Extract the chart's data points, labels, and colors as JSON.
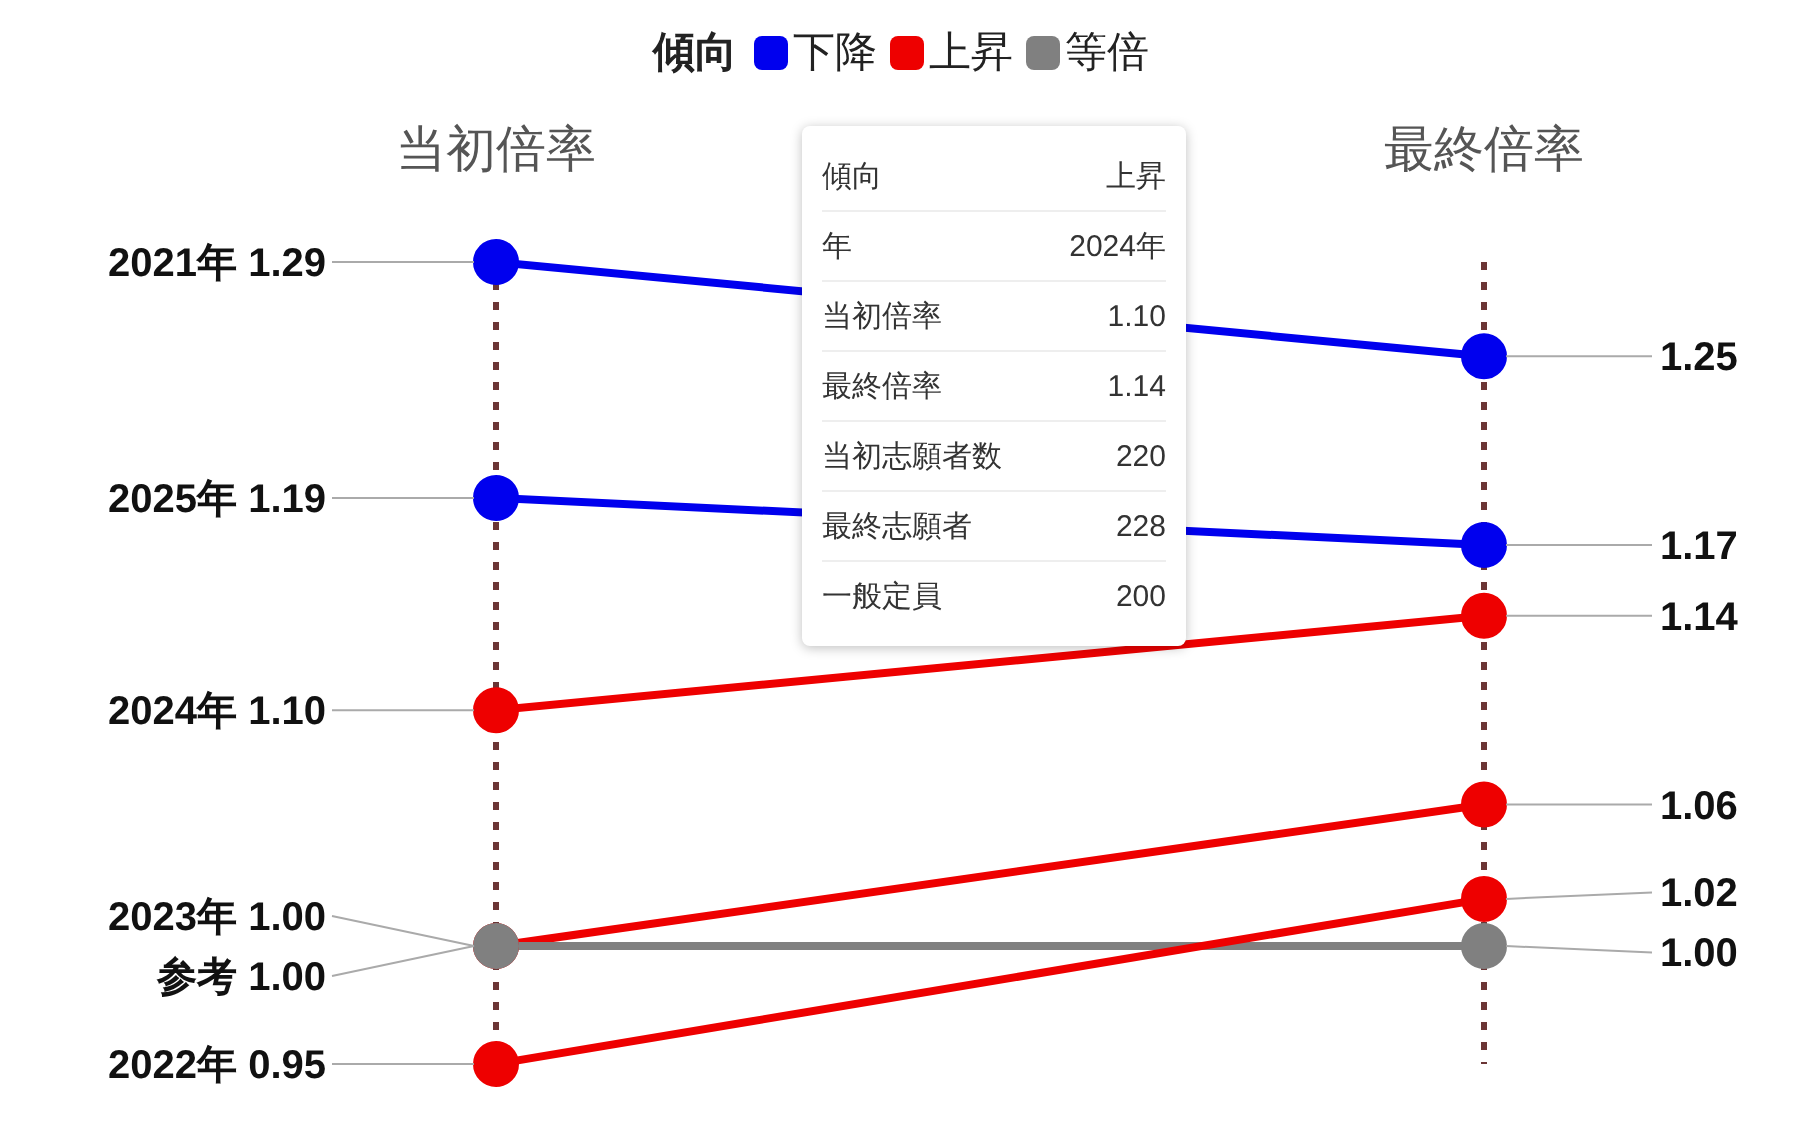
{
  "chart_data": {
    "type": "line",
    "categories": [
      "当初倍率",
      "最終倍率"
    ],
    "ylim": [
      0.95,
      1.29
    ],
    "tick_labels": "x",
    "grid": "x",
    "marker": "circle",
    "line_style": "solid",
    "legend": "top",
    "legend_title": "傾向",
    "series": [
      {
        "color": "#0000ee",
        "values": [
          1.29,
          1.25
        ],
        "value_labels": [
          "2021年 1.29",
          "1.25"
        ]
      },
      {
        "color": "#0000ee",
        "values": [
          1.19,
          1.17
        ],
        "value_labels": [
          "2025年 1.19",
          "1.17"
        ]
      },
      {
        "color": "#ee0000",
        "values": [
          1.1,
          1.14
        ],
        "value_labels": [
          "2024年 1.10",
          "1.14"
        ]
      },
      {
        "color": "#ee0000",
        "values": [
          1.0,
          1.06
        ],
        "value_labels": [
          "2023年 1.00",
          "1.06"
        ]
      },
      {
        "color": "#808080",
        "values": [
          1.0,
          1.0
        ],
        "value_labels": [
          "参考 1.00",
          "1.00"
        ]
      },
      {
        "color": "#ee0000",
        "values": [
          0.95,
          1.02
        ],
        "value_labels": [
          "2022年 0.95",
          "1.02"
        ]
      },
      {
        "name": "下降",
        "color": "#0000ee",
        "values": [
          null,
          null
        ]
      },
      {
        "name": "上昇",
        "color": "#ee0000",
        "values": [
          null,
          null
        ]
      },
      {
        "name": "等倍",
        "color": "#808080",
        "values": [
          null,
          null
        ]
      }
    ],
    "annotations": [
      "傾向",
      "上昇",
      "年",
      "2024年",
      "当初倍率",
      "1.10",
      "最終倍率",
      "1.14",
      "当初志願者数",
      "220",
      "最終志願者",
      "228",
      "一般定員",
      "200"
    ]
  }
}
